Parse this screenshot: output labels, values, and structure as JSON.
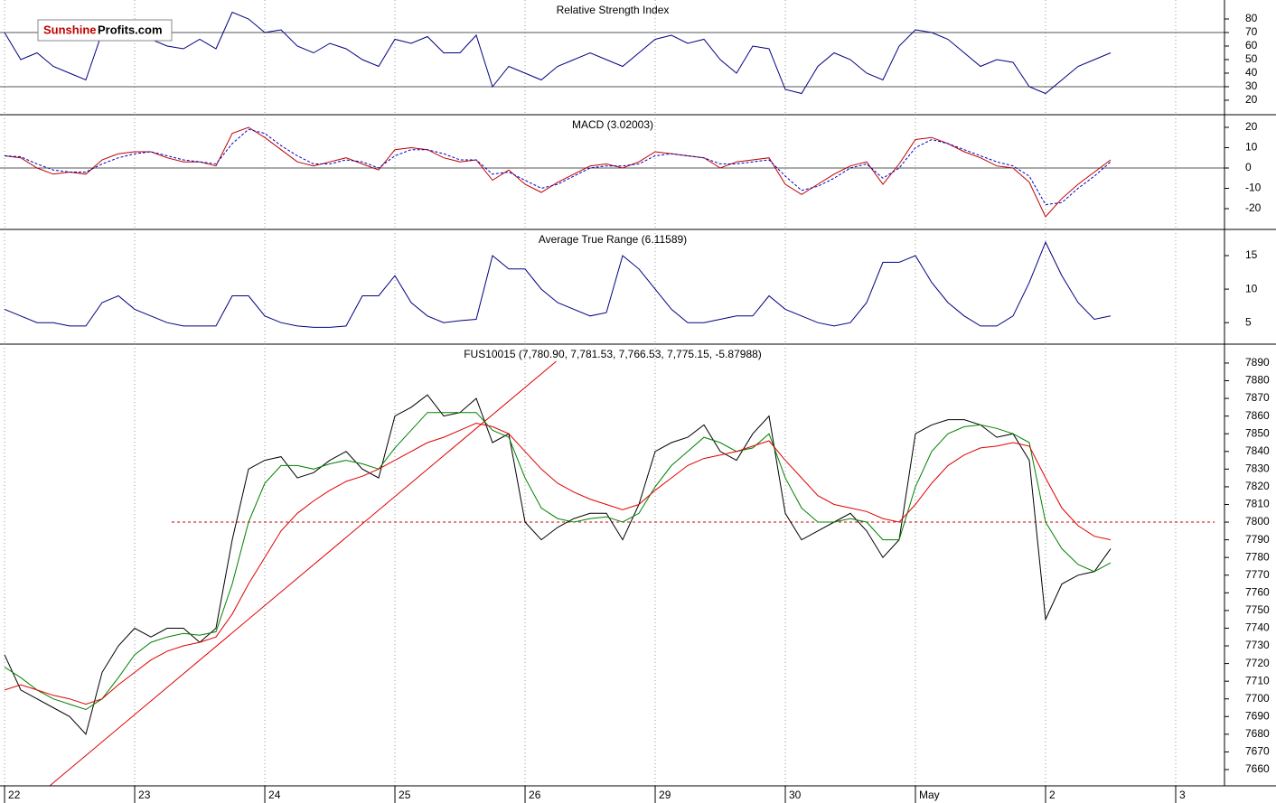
{
  "logo": {
    "part1": "Sunshine",
    "part2": "Profits.com"
  },
  "chart_data": [
    {
      "type": "line",
      "title": "Relative Strength Index",
      "x": [
        0,
        0.125,
        0.25,
        0.375,
        0.5,
        0.625,
        0.75,
        0.875,
        1,
        1.125,
        1.25,
        1.375,
        1.5,
        1.625,
        1.75,
        1.875,
        2,
        2.125,
        2.25,
        2.375,
        2.5,
        2.625,
        2.75,
        2.875,
        3,
        3.125,
        3.25,
        3.375,
        3.5,
        3.625,
        3.75,
        3.875,
        4,
        4.125,
        4.25,
        4.375,
        4.5,
        4.625,
        4.75,
        4.875,
        5,
        5.125,
        5.25,
        5.375,
        5.5,
        5.625,
        5.75,
        5.875,
        6,
        6.125,
        6.25,
        6.375,
        6.5,
        6.625,
        6.75,
        6.875,
        7,
        7.125,
        7.25,
        7.375,
        7.5,
        7.625,
        7.75,
        7.875,
        8,
        8.125,
        8.25,
        8.375,
        8.5
      ],
      "series": [
        {
          "color": "#000080",
          "values": [
            70,
            50,
            55,
            45,
            40,
            35,
            70,
            68,
            75,
            65,
            60,
            58,
            65,
            58,
            85,
            80,
            70,
            72,
            60,
            55,
            62,
            58,
            50,
            45,
            65,
            62,
            67,
            55,
            55,
            68,
            30,
            45,
            40,
            35,
            45,
            50,
            55,
            50,
            45,
            55,
            65,
            68,
            62,
            65,
            50,
            40,
            60,
            58,
            28,
            25,
            45,
            55,
            50,
            40,
            35,
            60,
            72,
            70,
            65,
            55,
            45,
            50,
            48,
            30,
            25,
            35,
            45,
            50,
            55
          ]
        }
      ],
      "hlines": [
        70,
        30
      ],
      "xlim": [
        -0.035,
        9.375
      ],
      "ylim": [
        9.3,
        94
      ],
      "yticks": [
        20,
        30,
        40,
        50,
        60,
        70,
        80
      ]
    },
    {
      "type": "line",
      "title": "MACD (3.02003)",
      "x": [
        0,
        0.125,
        0.25,
        0.375,
        0.5,
        0.625,
        0.75,
        0.875,
        1,
        1.125,
        1.25,
        1.375,
        1.5,
        1.625,
        1.75,
        1.875,
        2,
        2.125,
        2.25,
        2.375,
        2.5,
        2.625,
        2.75,
        2.875,
        3,
        3.125,
        3.25,
        3.375,
        3.5,
        3.625,
        3.75,
        3.875,
        4,
        4.125,
        4.25,
        4.375,
        4.5,
        4.625,
        4.75,
        4.875,
        5,
        5.125,
        5.25,
        5.375,
        5.5,
        5.625,
        5.75,
        5.875,
        6,
        6.125,
        6.25,
        6.375,
        6.5,
        6.625,
        6.75,
        6.875,
        7,
        7.125,
        7.25,
        7.375,
        7.5,
        7.625,
        7.75,
        7.875,
        8,
        8.125,
        8.25,
        8.375,
        8.5
      ],
      "series": [
        {
          "color": "#c00000",
          "values": [
            6,
            5,
            0,
            -3,
            -2,
            -3,
            4,
            7,
            8,
            8,
            5,
            3,
            3,
            1,
            17,
            20,
            15,
            9,
            3,
            1,
            3,
            5,
            2,
            -1,
            9,
            10,
            9,
            5,
            3,
            4,
            -6,
            -1,
            -8,
            -12,
            -7,
            -3,
            1,
            2,
            0,
            3,
            8,
            7,
            6,
            5,
            0,
            3,
            4,
            5,
            -8,
            -13,
            -8,
            -3,
            1,
            3,
            -8,
            2,
            14,
            15,
            12,
            8,
            5,
            1,
            0,
            -7,
            -24,
            -15,
            -8,
            -2,
            4
          ]
        },
        {
          "color": "#0000c0",
          "dashed": true,
          "values": [
            6,
            5.5,
            2,
            -1,
            -2,
            -2,
            2,
            5,
            7,
            8,
            6,
            4,
            3,
            2,
            12,
            19,
            17,
            11,
            6,
            2,
            2,
            4,
            3,
            0,
            6,
            9,
            9,
            7,
            4,
            4,
            -3,
            -2,
            -6,
            -10,
            -8,
            -4,
            0,
            1,
            1,
            2,
            6,
            7,
            6,
            5,
            2,
            2,
            3,
            4,
            -4,
            -11,
            -9,
            -5,
            0,
            2,
            -5,
            0,
            10,
            14,
            12,
            9,
            6,
            3,
            1,
            -4,
            -18,
            -17,
            -10,
            -4,
            3
          ]
        }
      ],
      "hlines": [
        0
      ],
      "xlim": [
        -0.035,
        9.375
      ],
      "ylim": [
        -30.2,
        26.2
      ],
      "yticks": [
        -20,
        -10,
        0,
        10,
        20
      ]
    },
    {
      "type": "line",
      "title": "Average True Range (6.11589)",
      "x": [
        0,
        0.125,
        0.25,
        0.375,
        0.5,
        0.625,
        0.75,
        0.875,
        1,
        1.125,
        1.25,
        1.375,
        1.5,
        1.625,
        1.75,
        1.875,
        2,
        2.125,
        2.25,
        2.375,
        2.5,
        2.625,
        2.75,
        2.875,
        3,
        3.125,
        3.25,
        3.375,
        3.5,
        3.625,
        3.75,
        3.875,
        4,
        4.125,
        4.25,
        4.375,
        4.5,
        4.625,
        4.75,
        4.875,
        5,
        5.125,
        5.25,
        5.375,
        5.5,
        5.625,
        5.75,
        5.875,
        6,
        6.125,
        6.25,
        6.375,
        6.5,
        6.625,
        6.75,
        6.875,
        7,
        7.125,
        7.25,
        7.375,
        7.5,
        7.625,
        7.75,
        7.875,
        8,
        8.125,
        8.25,
        8.375,
        8.5
      ],
      "series": [
        {
          "color": "#000080",
          "values": [
            7,
            6,
            5,
            5,
            4.5,
            4.5,
            8,
            9,
            7,
            6,
            5,
            4.5,
            4.5,
            4.5,
            9,
            9,
            6,
            5,
            4.5,
            4.3,
            4.3,
            4.5,
            9,
            9,
            12,
            8,
            6,
            5,
            5.3,
            5.5,
            15,
            13,
            13,
            10,
            8,
            7,
            6,
            6.5,
            15,
            13,
            10,
            7,
            5,
            5,
            5.5,
            6,
            6,
            9,
            7,
            6,
            5,
            4.5,
            5,
            8,
            14,
            14,
            15,
            11,
            8,
            6,
            4.5,
            4.5,
            6,
            11,
            17,
            12,
            8,
            5.5,
            6
          ]
        }
      ],
      "xlim": [
        -0.035,
        9.375
      ],
      "ylim": [
        1.8,
        18.9
      ],
      "yticks": [
        5,
        10,
        15
      ]
    },
    {
      "type": "line",
      "title": "FUS10015 (7,780.90, 7,781.53, 7,766.53, 7,775.15, -5.87988)",
      "x": [
        0,
        0.125,
        0.25,
        0.375,
        0.5,
        0.625,
        0.75,
        0.875,
        1,
        1.125,
        1.25,
        1.375,
        1.5,
        1.625,
        1.75,
        1.875,
        2,
        2.125,
        2.25,
        2.375,
        2.5,
        2.625,
        2.75,
        2.875,
        3,
        3.125,
        3.25,
        3.375,
        3.5,
        3.625,
        3.75,
        3.875,
        4,
        4.125,
        4.25,
        4.375,
        4.5,
        4.625,
        4.75,
        4.875,
        5,
        5.125,
        5.25,
        5.375,
        5.5,
        5.625,
        5.75,
        5.875,
        6,
        6.125,
        6.25,
        6.375,
        6.5,
        6.625,
        6.75,
        6.875,
        7,
        7.125,
        7.25,
        7.375,
        7.5,
        7.625,
        7.75,
        7.875,
        8,
        8.125,
        8.25,
        8.375,
        8.5
      ],
      "series": [
        {
          "color": "#000000",
          "values": [
            7725,
            7705,
            7700,
            7695,
            7690,
            7680,
            7715,
            7730,
            7740,
            7735,
            7740,
            7740,
            7732,
            7740,
            7790,
            7830,
            7835,
            7837,
            7825,
            7828,
            7835,
            7840,
            7830,
            7825,
            7860,
            7865,
            7872,
            7860,
            7862,
            7870,
            7845,
            7850,
            7800,
            7790,
            7797,
            7802,
            7805,
            7805,
            7790,
            7810,
            7840,
            7845,
            7848,
            7855,
            7840,
            7835,
            7850,
            7860,
            7805,
            7790,
            7795,
            7800,
            7805,
            7795,
            7780,
            7790,
            7850,
            7855,
            7858,
            7858,
            7855,
            7848,
            7850,
            7835,
            7745,
            7765,
            7770,
            7772,
            7785
          ]
        },
        {
          "color": "#008000",
          "values": [
            7718,
            7712,
            7705,
            7700,
            7697,
            7694,
            7700,
            7712,
            7725,
            7732,
            7735,
            7737,
            7736,
            7738,
            7765,
            7800,
            7822,
            7832,
            7832,
            7830,
            7833,
            7835,
            7833,
            7830,
            7842,
            7852,
            7862,
            7862,
            7862,
            7862,
            7852,
            7848,
            7825,
            7808,
            7802,
            7800,
            7802,
            7803,
            7800,
            7805,
            7820,
            7832,
            7840,
            7848,
            7845,
            7840,
            7842,
            7850,
            7825,
            7808,
            7800,
            7800,
            7802,
            7800,
            7790,
            7790,
            7820,
            7840,
            7850,
            7854,
            7855,
            7853,
            7850,
            7845,
            7800,
            7785,
            7776,
            7772,
            7777
          ]
        },
        {
          "color": "#e00000",
          "values": [
            7705,
            7708,
            7705,
            7702,
            7700,
            7697,
            7700,
            7708,
            7715,
            7722,
            7727,
            7730,
            7732,
            7735,
            7748,
            7765,
            7780,
            7795,
            7805,
            7812,
            7818,
            7823,
            7826,
            7830,
            7835,
            7840,
            7845,
            7848,
            7852,
            7856,
            7854,
            7850,
            7840,
            7830,
            7822,
            7817,
            7813,
            7810,
            7807,
            7810,
            7818,
            7825,
            7832,
            7836,
            7838,
            7840,
            7843,
            7846,
            7835,
            7825,
            7815,
            7810,
            7808,
            7806,
            7802,
            7800,
            7810,
            7822,
            7832,
            7838,
            7842,
            7843,
            7845,
            7843,
            7825,
            7808,
            7798,
            7792,
            7790
          ]
        }
      ],
      "trendline": {
        "x": [
          0.35,
          4.24
        ],
        "values": [
          7651,
          7891
        ],
        "color": "#e00000"
      },
      "dashed_hline": {
        "value": 7800,
        "x": [
          1.285,
          9.3
        ],
        "color": "#c00000"
      },
      "xlim": [
        -0.035,
        9.375
      ],
      "ylim": [
        7650.8,
        7900.7
      ],
      "yticks": [
        7660,
        7670,
        7680,
        7690,
        7700,
        7710,
        7720,
        7730,
        7740,
        7750,
        7760,
        7770,
        7780,
        7790,
        7800,
        7810,
        7820,
        7830,
        7840,
        7850,
        7860,
        7870,
        7880,
        7890
      ],
      "xticks": [
        {
          "value": 0,
          "label": "22"
        },
        {
          "value": 1,
          "label": "23"
        },
        {
          "value": 2,
          "label": "24"
        },
        {
          "value": 3,
          "label": "25"
        },
        {
          "value": 4,
          "label": "26"
        },
        {
          "value": 5,
          "label": "29"
        },
        {
          "value": 6,
          "label": "30"
        },
        {
          "value": 7,
          "label": "May"
        },
        {
          "value": 8,
          "label": "2"
        },
        {
          "value": 9,
          "label": "3"
        }
      ]
    }
  ]
}
